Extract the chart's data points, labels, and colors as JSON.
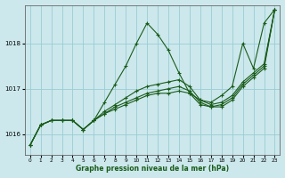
{
  "xlabel": "Graphe pression niveau de la mer (hPa)",
  "xlim": [
    -0.5,
    23.5
  ],
  "ylim": [
    1015.55,
    1018.85
  ],
  "yticks": [
    1016,
    1017,
    1018
  ],
  "xticks": [
    0,
    1,
    2,
    3,
    4,
    5,
    6,
    7,
    8,
    9,
    10,
    11,
    12,
    13,
    14,
    15,
    16,
    17,
    18,
    19,
    20,
    21,
    22,
    23
  ],
  "bg_color": "#cce8ec",
  "grid_color": "#99ccd4",
  "line_color": "#1a5c1a",
  "line_width": 0.8,
  "marker": "+",
  "marker_size": 3.5,
  "marker_ew": 0.8,
  "series": [
    [
      1015.75,
      1016.2,
      1016.3,
      1016.3,
      1016.3,
      1016.1,
      1016.3,
      1016.7,
      1017.1,
      1017.5,
      1018.0,
      1018.45,
      1018.2,
      1017.85,
      1017.35,
      1016.9,
      1016.75,
      1016.7,
      1016.85,
      1017.05,
      1018.0,
      1017.45,
      1018.45,
      1018.75
    ],
    [
      1015.75,
      1016.2,
      1016.3,
      1016.3,
      1016.3,
      1016.1,
      1016.3,
      1016.5,
      1016.65,
      1016.8,
      1016.95,
      1017.05,
      1017.1,
      1017.15,
      1017.2,
      1017.05,
      1016.75,
      1016.65,
      1016.7,
      1016.85,
      1017.15,
      1017.35,
      1017.55,
      1018.75
    ],
    [
      1015.75,
      1016.2,
      1016.3,
      1016.3,
      1016.3,
      1016.1,
      1016.3,
      1016.45,
      1016.6,
      1016.7,
      1016.8,
      1016.9,
      1016.95,
      1017.0,
      1017.05,
      1016.95,
      1016.7,
      1016.6,
      1016.65,
      1016.8,
      1017.1,
      1017.3,
      1017.5,
      1018.75
    ],
    [
      1015.75,
      1016.2,
      1016.3,
      1016.3,
      1016.3,
      1016.1,
      1016.3,
      1016.45,
      1016.55,
      1016.65,
      1016.75,
      1016.85,
      1016.9,
      1016.9,
      1016.95,
      1016.9,
      1016.65,
      1016.6,
      1016.6,
      1016.75,
      1017.05,
      1017.25,
      1017.45,
      1018.75
    ]
  ]
}
